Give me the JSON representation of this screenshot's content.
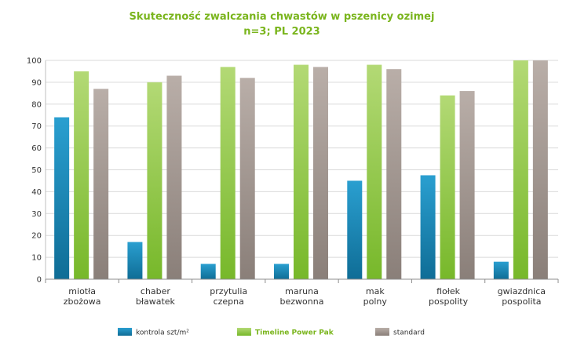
{
  "chart_data": {
    "type": "bar",
    "title": [
      "Skuteczność zwalczania chwastów w pszenicy ozimej",
      "n=3; PL 2023"
    ],
    "categories": [
      [
        "miotła",
        "zbożowa"
      ],
      [
        "chaber",
        "bławatek"
      ],
      [
        "przytulia",
        "czepna"
      ],
      [
        "maruna",
        "bezwonna"
      ],
      [
        "mak",
        "polny"
      ],
      [
        "fiołek",
        "pospolity"
      ],
      [
        "gwiazdnica",
        "pospolita"
      ]
    ],
    "series": [
      {
        "name": "kontrola szt/m²",
        "color": "#0f6d96",
        "color_light": "#2a9fd0",
        "values": [
          74,
          17,
          7,
          7,
          45,
          47.5,
          8
        ]
      },
      {
        "name": "Timeline Power Pak",
        "color": "#77b82a",
        "color_light": "#b3d975",
        "values": [
          95,
          90,
          97,
          98,
          98,
          84,
          100
        ]
      },
      {
        "name": "standard",
        "color": "#8a7f79",
        "color_light": "#b9aea8",
        "values": [
          87,
          93,
          92,
          97,
          96,
          86,
          100
        ]
      }
    ],
    "yticks": [
      "0",
      "10",
      "20",
      "30",
      "40",
      "50",
      "60",
      "70",
      "80",
      "90",
      "100"
    ],
    "ylim": [
      0,
      100
    ],
    "xlabel": "",
    "ylabel": "",
    "grid": true,
    "legend_position": "bottom"
  }
}
